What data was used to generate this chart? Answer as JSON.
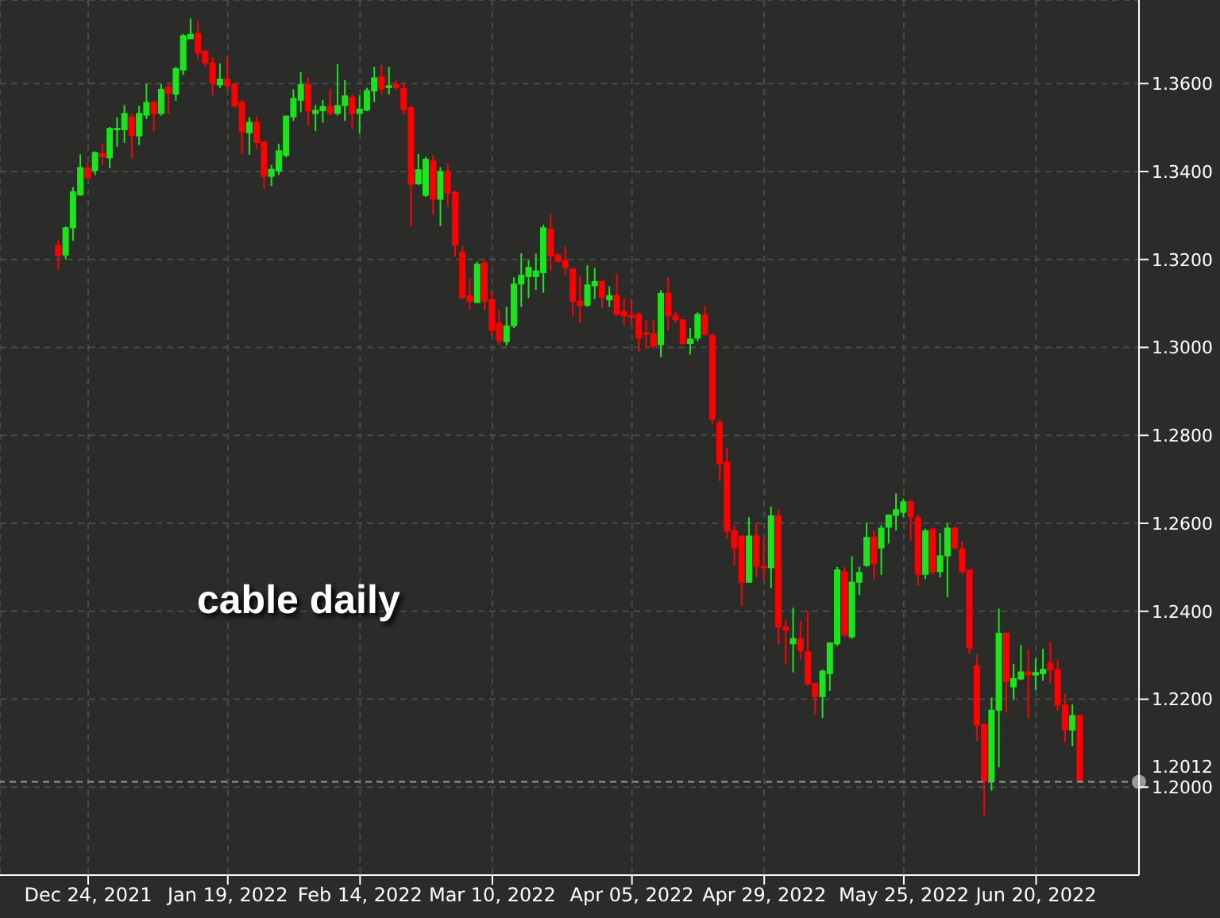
{
  "chart_data": {
    "type": "candlestick",
    "categories": [
      null,
      null,
      null,
      null,
      "Dec 24, 2021",
      null,
      null,
      null,
      null,
      null,
      null,
      null,
      null,
      null,
      null,
      null,
      null,
      null,
      null,
      null,
      null,
      null,
      null,
      "Jan 19, 2022",
      null,
      null,
      null,
      null,
      null,
      null,
      null,
      null,
      null,
      null,
      null,
      null,
      null,
      null,
      null,
      null,
      null,
      "Feb 14, 2022",
      null,
      null,
      null,
      null,
      null,
      null,
      null,
      null,
      null,
      null,
      null,
      null,
      null,
      null,
      null,
      null,
      null,
      "Mar 10, 2022",
      null,
      null,
      null,
      null,
      null,
      null,
      null,
      null,
      null,
      null,
      null,
      null,
      null,
      null,
      null,
      null,
      null,
      null,
      "Apr 05, 2022",
      null,
      null,
      null,
      null,
      null,
      null,
      null,
      null,
      null,
      null,
      null,
      null,
      null,
      null,
      null,
      null,
      null,
      "Apr 29, 2022",
      null,
      null,
      null,
      null,
      null,
      null,
      null,
      null,
      null,
      null,
      null,
      null,
      null,
      null,
      null,
      null,
      null,
      null,
      "May 25, 2022",
      null,
      null,
      null,
      null,
      null,
      null,
      null,
      null,
      null,
      null,
      null,
      null,
      null,
      null,
      null,
      null,
      null,
      "Jun 20, 2022",
      null,
      null,
      null,
      null,
      null,
      null
    ],
    "ohlc": [
      [
        1.3233,
        1.3245,
        1.3177,
        1.3208
      ],
      [
        1.3209,
        1.3275,
        1.32,
        1.3273
      ],
      [
        1.3271,
        1.3364,
        1.3242,
        1.3355
      ],
      [
        1.3346,
        1.3439,
        1.3344,
        1.341
      ],
      [
        1.3408,
        1.342,
        1.3382,
        1.3385
      ],
      [
        1.3401,
        1.3446,
        1.3392,
        1.3444
      ],
      [
        1.3442,
        1.3463,
        1.3415,
        1.3432
      ],
      [
        1.343,
        1.3501,
        1.3408,
        1.3499
      ],
      [
        1.3494,
        1.3523,
        1.3456,
        1.3499
      ],
      [
        1.3494,
        1.3551,
        1.3465,
        1.3533
      ],
      [
        1.3525,
        1.3531,
        1.343,
        1.3481
      ],
      [
        1.348,
        1.3549,
        1.346,
        1.3533
      ],
      [
        1.3527,
        1.3599,
        1.3519,
        1.3558
      ],
      [
        1.3558,
        1.3561,
        1.3492,
        1.3531
      ],
      [
        1.3531,
        1.3599,
        1.3527,
        1.3588
      ],
      [
        1.3593,
        1.36,
        1.3531,
        1.3576
      ],
      [
        1.3575,
        1.3638,
        1.3561,
        1.3635
      ],
      [
        1.363,
        1.3713,
        1.362,
        1.371
      ],
      [
        1.3701,
        1.3748,
        1.3701,
        1.3713
      ],
      [
        1.3715,
        1.3742,
        1.3654,
        1.3668
      ],
      [
        1.3674,
        1.3677,
        1.3638,
        1.3646
      ],
      [
        1.3648,
        1.366,
        1.3573,
        1.36
      ],
      [
        1.3596,
        1.3646,
        1.359,
        1.3611
      ],
      [
        1.3611,
        1.3662,
        1.3587,
        1.3594
      ],
      [
        1.36,
        1.3602,
        1.3545,
        1.3549
      ],
      [
        1.3558,
        1.3563,
        1.3439,
        1.3489
      ],
      [
        1.3487,
        1.3523,
        1.3438,
        1.3513
      ],
      [
        1.3513,
        1.3525,
        1.3451,
        1.3465
      ],
      [
        1.3468,
        1.3468,
        1.3361,
        1.3388
      ],
      [
        1.3388,
        1.3415,
        1.3367,
        1.3406
      ],
      [
        1.34,
        1.3463,
        1.3392,
        1.3448
      ],
      [
        1.3436,
        1.3527,
        1.3432,
        1.3527
      ],
      [
        1.3523,
        1.3587,
        1.3515,
        1.3567
      ],
      [
        1.3561,
        1.3626,
        1.3535,
        1.3599
      ],
      [
        1.3599,
        1.3614,
        1.3504,
        1.3537
      ],
      [
        1.3531,
        1.3551,
        1.3492,
        1.354
      ],
      [
        1.3537,
        1.3563,
        1.3511,
        1.3549
      ],
      [
        1.3549,
        1.3587,
        1.3527,
        1.3531
      ],
      [
        1.3531,
        1.3644,
        1.3527,
        1.3551
      ],
      [
        1.3549,
        1.3608,
        1.3515,
        1.3573
      ],
      [
        1.357,
        1.3575,
        1.3498,
        1.3531
      ],
      [
        1.3531,
        1.3573,
        1.3487,
        1.3543
      ],
      [
        1.3539,
        1.359,
        1.3537,
        1.3585
      ],
      [
        1.3582,
        1.3638,
        1.3558,
        1.3614
      ],
      [
        1.3617,
        1.3642,
        1.3575,
        1.3587
      ],
      [
        1.359,
        1.3638,
        1.3575,
        1.3596
      ],
      [
        1.3599,
        1.3608,
        1.3585,
        1.359
      ],
      [
        1.359,
        1.3602,
        1.3529,
        1.3539
      ],
      [
        1.3546,
        1.3549,
        1.3275,
        1.337
      ],
      [
        1.3371,
        1.344,
        1.3369,
        1.3405
      ],
      [
        1.3345,
        1.3433,
        1.3342,
        1.3429
      ],
      [
        1.3425,
        1.3437,
        1.3302,
        1.3336
      ],
      [
        1.3336,
        1.341,
        1.3276,
        1.3401
      ],
      [
        1.3399,
        1.3419,
        1.3321,
        1.335
      ],
      [
        1.3354,
        1.3357,
        1.3207,
        1.3231
      ],
      [
        1.3217,
        1.3231,
        1.311,
        1.3112
      ],
      [
        1.3119,
        1.3157,
        1.3086,
        1.3104
      ],
      [
        1.3101,
        1.3195,
        1.3101,
        1.319
      ],
      [
        1.3193,
        1.3199,
        1.3086,
        1.3104
      ],
      [
        1.311,
        1.3127,
        1.3026,
        1.3038
      ],
      [
        1.3056,
        1.3086,
        1.3005,
        1.3014
      ],
      [
        1.3012,
        1.3092,
        1.3005,
        1.305
      ],
      [
        1.3048,
        1.3159,
        1.3044,
        1.3145
      ],
      [
        1.3143,
        1.3214,
        1.3092,
        1.3165
      ],
      [
        1.316,
        1.3199,
        1.3112,
        1.3183
      ],
      [
        1.316,
        1.3213,
        1.3131,
        1.3175
      ],
      [
        1.3169,
        1.3279,
        1.3124,
        1.3273
      ],
      [
        1.327,
        1.3302,
        1.3175,
        1.3207
      ],
      [
        1.3211,
        1.3214,
        1.3193,
        1.3195
      ],
      [
        1.3199,
        1.3229,
        1.3163,
        1.3181
      ],
      [
        1.3179,
        1.3181,
        1.3071,
        1.3104
      ],
      [
        1.3106,
        1.3163,
        1.3056,
        1.3094
      ],
      [
        1.3095,
        1.3187,
        1.3092,
        1.3143
      ],
      [
        1.3139,
        1.3181,
        1.311,
        1.3151
      ],
      [
        1.3151,
        1.3151,
        1.3089,
        1.3113
      ],
      [
        1.3107,
        1.3139,
        1.3092,
        1.3119
      ],
      [
        1.3119,
        1.3169,
        1.3071,
        1.3074
      ],
      [
        1.3083,
        1.311,
        1.305,
        1.3071
      ],
      [
        1.3074,
        1.311,
        1.3053,
        1.3068
      ],
      [
        1.3076,
        1.308,
        1.299,
        1.302
      ],
      [
        1.3034,
        1.3062,
        1.2996,
        1.3029
      ],
      [
        1.3032,
        1.3062,
        1.2996,
        1.3002
      ],
      [
        1.3005,
        1.313,
        1.2978,
        1.3124
      ],
      [
        1.3124,
        1.316,
        1.3038,
        1.3071
      ],
      [
        1.3074,
        1.308,
        1.3056,
        1.3062
      ],
      [
        1.3064,
        1.3064,
        1.3005,
        1.3008
      ],
      [
        1.3008,
        1.3044,
        1.2984,
        1.302
      ],
      [
        1.302,
        1.308,
        1.3014,
        1.3076
      ],
      [
        1.3074,
        1.3095,
        1.3026,
        1.3029
      ],
      [
        1.3028,
        1.3032,
        1.2824,
        1.2836
      ],
      [
        1.283,
        1.2836,
        1.2696,
        1.2734
      ],
      [
        1.274,
        1.2772,
        1.2564,
        1.2581
      ],
      [
        1.2584,
        1.2596,
        1.2504,
        1.2543
      ],
      [
        1.2572,
        1.2572,
        1.2411,
        1.2465
      ],
      [
        1.2465,
        1.2614,
        1.2465,
        1.2572
      ],
      [
        1.2572,
        1.2602,
        1.2477,
        1.2501
      ],
      [
        1.2503,
        1.2566,
        1.2471,
        1.2498
      ],
      [
        1.2498,
        1.2638,
        1.2453,
        1.2618
      ],
      [
        1.2618,
        1.2632,
        1.2325,
        1.2363
      ],
      [
        1.2365,
        1.2381,
        1.2279,
        1.2356
      ],
      [
        1.2325,
        1.2408,
        1.2261,
        1.2339
      ],
      [
        1.2339,
        1.2377,
        1.2291,
        1.2309
      ],
      [
        1.2309,
        1.2401,
        1.2231,
        1.2234
      ],
      [
        1.2237,
        1.2237,
        1.2165,
        1.2205
      ],
      [
        1.2205,
        1.2267,
        1.2157,
        1.2265
      ],
      [
        1.2257,
        1.2329,
        1.2219,
        1.2329
      ],
      [
        1.2325,
        1.2501,
        1.2321,
        1.2495
      ],
      [
        1.2491,
        1.2501,
        1.2341,
        1.2345
      ],
      [
        1.2341,
        1.2525,
        1.2337,
        1.2467
      ],
      [
        1.2465,
        1.2501,
        1.2437,
        1.2489
      ],
      [
        1.2503,
        1.2602,
        1.2501,
        1.2569
      ],
      [
        1.2569,
        1.2584,
        1.2473,
        1.2507
      ],
      [
        1.2543,
        1.2596,
        1.2483,
        1.259
      ],
      [
        1.259,
        1.262,
        1.2554,
        1.262
      ],
      [
        1.2617,
        1.2668,
        1.2584,
        1.2632
      ],
      [
        1.2624,
        1.2656,
        1.2614,
        1.265
      ],
      [
        1.265,
        1.2653,
        1.256,
        1.2614
      ],
      [
        1.2614,
        1.262,
        1.2459,
        1.2483
      ],
      [
        1.2483,
        1.2588,
        1.2473,
        1.2584
      ],
      [
        1.2588,
        1.259,
        1.2483,
        1.2489
      ],
      [
        1.2489,
        1.2578,
        1.2477,
        1.2527
      ],
      [
        1.2525,
        1.26,
        1.2432,
        1.259
      ],
      [
        1.259,
        1.2593,
        1.254,
        1.2543
      ],
      [
        1.2543,
        1.256,
        1.2485,
        1.2489
      ],
      [
        1.2495,
        1.2495,
        1.2303,
        1.2315
      ],
      [
        1.2277,
        1.2301,
        1.2105,
        1.214
      ],
      [
        1.2144,
        1.2144,
        1.1936,
        1.2013
      ],
      [
        1.2013,
        1.2204,
        1.1992,
        1.2176
      ],
      [
        1.2174,
        1.2406,
        1.2045,
        1.2351
      ],
      [
        1.2351,
        1.2351,
        1.217,
        1.2239
      ],
      [
        1.2227,
        1.228,
        1.22,
        1.2248
      ],
      [
        1.2245,
        1.2323,
        1.2244,
        1.2263
      ],
      [
        1.2263,
        1.2313,
        1.2158,
        1.2254
      ],
      [
        1.2254,
        1.2293,
        1.2221,
        1.2262
      ],
      [
        1.2257,
        1.2315,
        1.2242,
        1.2269
      ],
      [
        1.2283,
        1.2331,
        1.2236,
        1.2265
      ],
      [
        1.2268,
        1.2289,
        1.2174,
        1.2185
      ],
      [
        1.2188,
        1.2212,
        1.2102,
        1.2129
      ],
      [
        1.2129,
        1.2188,
        1.2093,
        1.2164
      ],
      [
        1.2164,
        1.2164,
        1.2013,
        1.2013
      ]
    ],
    "colors": [
      "#ff0000",
      "#19e619",
      "#19e619",
      "#19e619",
      "#ff0000",
      "#19e619",
      "#ff0000",
      "#19e619",
      "#19e619",
      "#19e619",
      "#ff0000",
      "#19e619",
      "#19e619",
      "#ff0000",
      "#19e619",
      "#ff0000",
      "#19e619",
      "#19e619",
      "#19e619",
      "#ff0000",
      "#ff0000",
      "#ff0000",
      "#19e619",
      "#ff0000",
      "#ff0000",
      "#ff0000",
      "#19e619",
      "#ff0000",
      "#ff0000",
      "#19e619",
      "#19e619",
      "#19e619",
      "#19e619",
      "#19e619",
      "#ff0000",
      "#19e619",
      "#19e619",
      "#ff0000",
      "#19e619",
      "#19e619",
      "#ff0000",
      "#19e619",
      "#19e619",
      "#19e619",
      "#ff0000",
      "#19e619",
      "#ff0000",
      "#ff0000",
      "#ff0000",
      "#19e619",
      "#19e619",
      "#ff0000",
      "#19e619",
      "#ff0000",
      "#ff0000",
      "#ff0000",
      "#ff0000",
      "#19e619",
      "#ff0000",
      "#ff0000",
      "#ff0000",
      "#19e619",
      "#19e619",
      "#19e619",
      "#19e619",
      "#19e619",
      "#19e619",
      "#ff0000",
      "#ff0000",
      "#ff0000",
      "#ff0000",
      "#ff0000",
      "#19e619",
      "#19e619",
      "#ff0000",
      "#19e619",
      "#ff0000",
      "#ff0000",
      "#ff0000",
      "#ff0000",
      "#ff0000",
      "#ff0000",
      "#19e619",
      "#ff0000",
      "#ff0000",
      "#ff0000",
      "#19e619",
      "#19e619",
      "#ff0000",
      "#ff0000",
      "#ff0000",
      "#ff0000",
      "#ff0000",
      "#ff0000",
      "#19e619",
      "#ff0000",
      "#ff0000",
      "#19e619",
      "#ff0000",
      "#ff0000",
      "#19e619",
      "#ff0000",
      "#ff0000",
      "#ff0000",
      "#19e619",
      "#19e619",
      "#19e619",
      "#ff0000",
      "#19e619",
      "#19e619",
      "#19e619",
      "#ff0000",
      "#19e619",
      "#19e619",
      "#19e619",
      "#19e619",
      "#ff0000",
      "#ff0000",
      "#19e619",
      "#ff0000",
      "#19e619",
      "#19e619",
      "#ff0000",
      "#ff0000",
      "#ff0000",
      "#ff0000",
      "#ff0000",
      "#19e619",
      "#19e619",
      "#ff0000",
      "#19e619",
      "#19e619",
      "#ff0000",
      "#19e619",
      "#19e619",
      "#ff0000",
      "#ff0000",
      "#ff0000",
      "#19e619",
      "#ff0000"
    ],
    "ylim": [
      1.18,
      1.379
    ],
    "yticks": [
      {
        "value": 1.22,
        "label": "1.2200"
      },
      {
        "value": 1.24,
        "label": "1.2400"
      },
      {
        "value": 1.26,
        "label": "1.2600"
      },
      {
        "value": 1.28,
        "label": "1.2800"
      },
      {
        "value": 1.3,
        "label": "1.3000"
      },
      {
        "value": 1.32,
        "label": "1.3200"
      },
      {
        "value": 1.34,
        "label": "1.3400"
      },
      {
        "value": 1.36,
        "label": "1.3600"
      },
      {
        "value": 1.2,
        "label": "1.2000"
      }
    ],
    "ref_lines": [
      {
        "axis": "y",
        "value": 1.2012,
        "label": "1.2012",
        "color": "#9a9a9a",
        "line_style": "dashed"
      }
    ],
    "annotations": [
      "cable daily"
    ],
    "grid": true
  }
}
